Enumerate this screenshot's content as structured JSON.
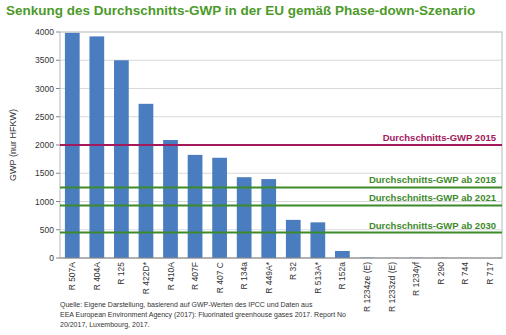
{
  "chart_data": {
    "type": "bar",
    "title": "Senkung des Durchschnitts-GWP in der EU gemäß Phase-down-Szenario",
    "y_label": "GWP (nur HFKW)",
    "categories": [
      "R 507A",
      "R 404A",
      "R 125",
      "R 422D*",
      "R 410A",
      "R 407F",
      "R 407 C",
      "R 134a",
      "R 449A*",
      "R 32",
      "R 513A*",
      "R 152a",
      "R 1234ze (E)",
      "R 1233zd (E)",
      "R 1234yf",
      "R 290",
      "R 744",
      "R 717"
    ],
    "values": [
      3985,
      3922,
      3500,
      2729,
      2088,
      1825,
      1774,
      1430,
      1397,
      675,
      631,
      124,
      7,
      1,
      4,
      3,
      1,
      0
    ],
    "color": "#4a7dbf",
    "ylim": [
      0,
      4000
    ],
    "yticks": [
      0,
      500,
      1000,
      1500,
      2000,
      2500,
      3000,
      3500,
      4000
    ],
    "grid": true,
    "annotations": [
      {
        "label": "Durchschnitts-GWP 2015",
        "value": 2000,
        "color": "#a3195b"
      },
      {
        "label": "Durchschnitts-GWP ab 2018",
        "value": 1250,
        "color": "#3d8a2a"
      },
      {
        "label": "Durchschnitts-GWP ab 2021",
        "value": 930,
        "color": "#3d8a2a"
      },
      {
        "label": "Durchschnitts-GWP ab 2030",
        "value": 450,
        "color": "#3d8a2a"
      }
    ],
    "source": [
      "Quelle: Eigene Darstellung, basierend auf GWP-Werten des IPCC und Daten aus",
      "EEA European Environment Agency (2017): Fluorinated greenhouse gases 2017. Report No",
      "20/2017, Luxembourg, 2017."
    ]
  }
}
